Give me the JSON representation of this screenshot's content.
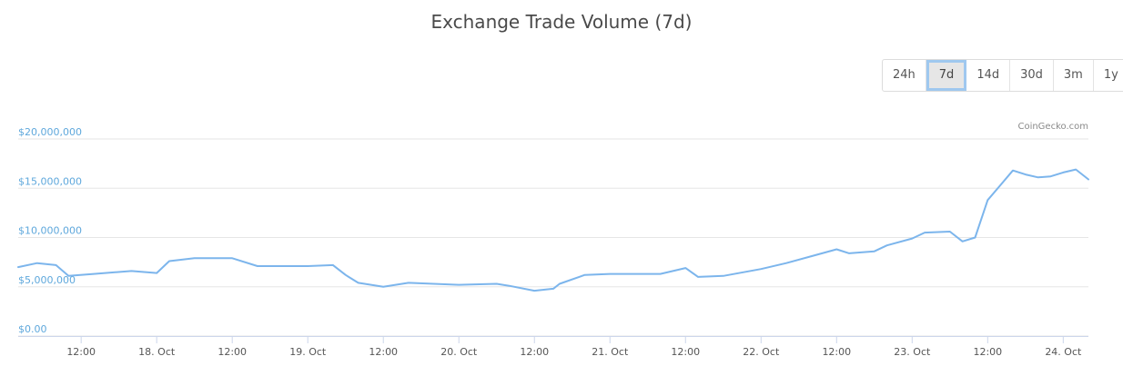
{
  "chart_data": {
    "type": "line",
    "title": "Exchange Trade Volume (7d)",
    "credit": "CoinGecko.com",
    "ylim": [
      0,
      20000000
    ],
    "y_ticks": [
      {
        "value": 0,
        "label": "$0.00"
      },
      {
        "value": 5000000,
        "label": "$5,000,000"
      },
      {
        "value": 10000000,
        "label": "$10,000,000"
      },
      {
        "value": 15000000,
        "label": "$15,000,000"
      },
      {
        "value": 20000000,
        "label": "$20,000,000"
      }
    ],
    "x_range": [
      "17 Oct 02:00",
      "24 Oct 04:00"
    ],
    "x_ticks": [
      "12:00",
      "18. Oct",
      "12:00",
      "19. Oct",
      "12:00",
      "20. Oct",
      "12:00",
      "21. Oct",
      "12:00",
      "22. Oct",
      "12:00",
      "23. Oct",
      "12:00",
      "24. Oct"
    ],
    "grid": true,
    "legend": "none",
    "line_color": "#7cb5ec",
    "series": [
      {
        "x": [
          "17 Oct 02:00",
          "17 Oct 05:00",
          "17 Oct 08:00",
          "17 Oct 10:00",
          "17 Oct 14:00",
          "17 Oct 20:00",
          "18 Oct 00:00",
          "18 Oct 02:00",
          "18 Oct 06:00",
          "18 Oct 12:00",
          "18 Oct 16:00",
          "19 Oct 00:00",
          "19 Oct 04:00",
          "19 Oct 06:00",
          "19 Oct 08:00",
          "19 Oct 12:00",
          "19 Oct 16:00",
          "20 Oct 00:00",
          "20 Oct 06:00",
          "20 Oct 08:00",
          "20 Oct 12:00",
          "20 Oct 15:00",
          "20 Oct 16:00",
          "20 Oct 20:00",
          "21 Oct 00:00",
          "21 Oct 06:00",
          "21 Oct 08:00",
          "21 Oct 12:00",
          "21 Oct 14:00",
          "21 Oct 18:00",
          "22 Oct 00:00",
          "22 Oct 04:00",
          "22 Oct 08:00",
          "22 Oct 12:00",
          "22 Oct 14:00",
          "22 Oct 18:00",
          "22 Oct 20:00",
          "23 Oct 00:00",
          "23 Oct 02:00",
          "23 Oct 06:00",
          "23 Oct 08:00",
          "23 Oct 10:00",
          "23 Oct 12:00",
          "23 Oct 14:00",
          "23 Oct 16:00",
          "23 Oct 18:00",
          "23 Oct 20:00",
          "23 Oct 22:00",
          "24 Oct 00:00",
          "24 Oct 02:00",
          "24 Oct 04:00"
        ],
        "values": [
          7000000,
          7400000,
          7200000,
          6100000,
          6300000,
          6600000,
          6400000,
          7600000,
          7900000,
          7900000,
          7100000,
          7100000,
          7200000,
          6200000,
          5400000,
          5000000,
          5400000,
          5200000,
          5300000,
          5100000,
          4600000,
          4800000,
          5300000,
          6200000,
          6300000,
          6300000,
          6300000,
          6900000,
          6000000,
          6100000,
          6800000,
          7400000,
          8100000,
          8800000,
          8400000,
          8600000,
          9200000,
          9900000,
          10500000,
          10600000,
          9600000,
          10000000,
          13800000,
          15300000,
          16800000,
          16400000,
          16100000,
          16200000,
          16600000,
          16900000,
          15900000
        ]
      }
    ]
  },
  "range_selector": {
    "options": [
      "24h",
      "7d",
      "14d",
      "30d",
      "3m",
      "1y"
    ],
    "selected": "7d"
  }
}
